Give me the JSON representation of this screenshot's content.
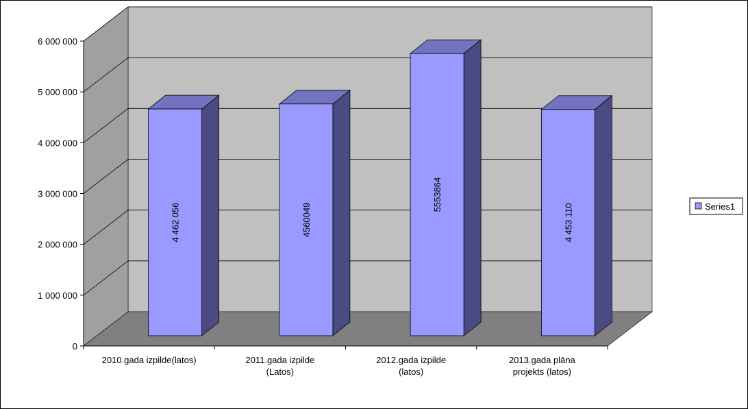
{
  "chart_data": {
    "type": "bar",
    "three_d": true,
    "categories": [
      [
        "2010.gada izpilde(latos)"
      ],
      [
        "2011.gada izpilde",
        "(Latos)"
      ],
      [
        "2012.gada izpilde",
        "(latos)"
      ],
      [
        "2013.gada plāna",
        "projekts (latos)"
      ]
    ],
    "series": [
      {
        "name": "Series1",
        "values": [
          4462056,
          4560049,
          5553864,
          4453110
        ],
        "data_labels": [
          "4 462 056",
          "4560049",
          "5553864",
          "4 453 110"
        ]
      }
    ],
    "ylim": [
      0,
      6000000
    ],
    "yticks": [
      0,
      1000000,
      2000000,
      3000000,
      4000000,
      5000000,
      6000000
    ],
    "ytick_labels": [
      "0",
      "1 000 000",
      "2 000 000",
      "3 000 000",
      "4 000 000",
      "5 000 000",
      "6 000 000"
    ],
    "grid": true,
    "legend": "right",
    "colors": {
      "bar_front": "#9999ff",
      "bar_side": "#4b4b84",
      "bar_top": "#7373c0",
      "wall": "#c0c0c0",
      "floor": "#808080",
      "side_wall": "#a0a0a0"
    }
  }
}
